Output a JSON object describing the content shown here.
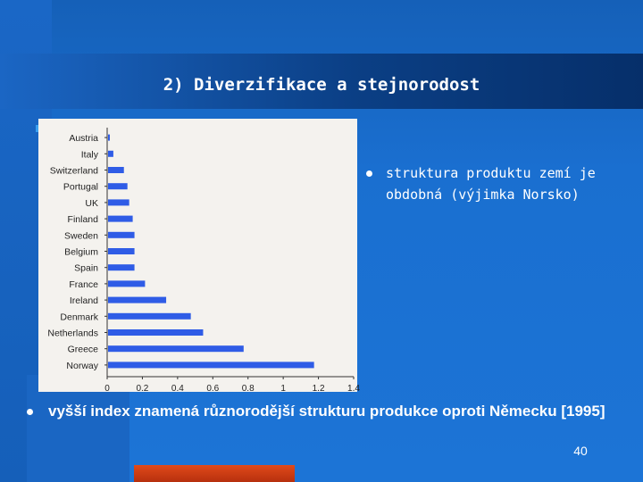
{
  "slide": {
    "title": "2) Diverzifikace a stejnorodost",
    "bullet_right": "struktura produktu zemí je obdobná (výjimka Norsko)",
    "bullet_bottom": "vyšší index znamená různorodější strukturu produkce oproti Německu [1995]",
    "page_number": "40",
    "colors": {
      "bar": "#2f5ce6",
      "accent": "#3aa0f0",
      "bottom_bar": "#d9421a"
    }
  },
  "chart_data": {
    "type": "bar",
    "orientation": "horizontal",
    "categories": [
      "Austria",
      "Italy",
      "Switzerland",
      "Portugal",
      "UK",
      "Finland",
      "Sweden",
      "Belgium",
      "Spain",
      "France",
      "Ireland",
      "Denmark",
      "Netherlands",
      "Greece",
      "Norway"
    ],
    "values": [
      0.01,
      0.03,
      0.09,
      0.11,
      0.12,
      0.14,
      0.15,
      0.15,
      0.15,
      0.21,
      0.33,
      0.47,
      0.54,
      0.77,
      1.17
    ],
    "title": "",
    "xlabel": "",
    "ylabel": "",
    "xlim": [
      0,
      1.4
    ],
    "xticks": [
      "0",
      "0.2",
      "0.4",
      "0.6",
      "0.8",
      "1",
      "1.2",
      "1.4"
    ],
    "grid": false
  }
}
